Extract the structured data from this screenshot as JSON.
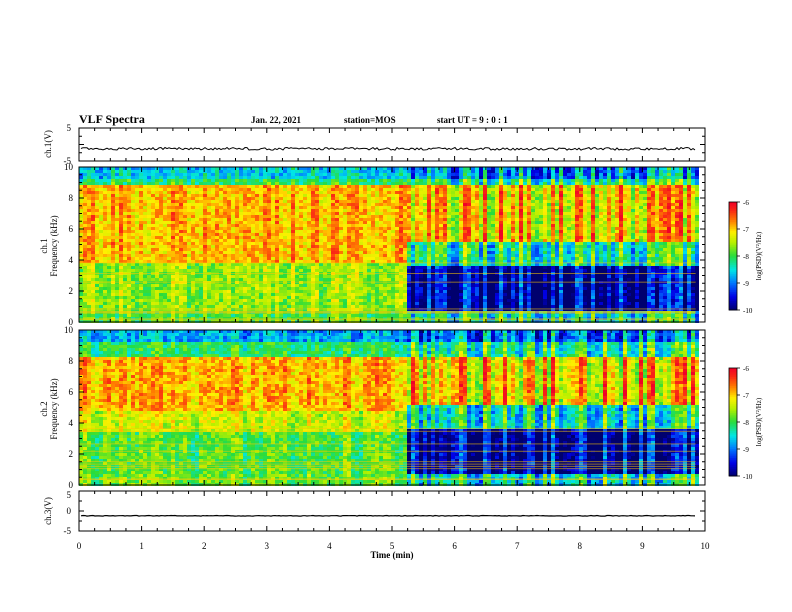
{
  "header": {
    "title": "VLF Spectra",
    "date": "Jan. 22, 2021",
    "station": "station=MOS",
    "start": "start UT =  9 : 0 : 1"
  },
  "chart_data": [
    {
      "type": "line",
      "name": "ch1_waveform",
      "ylabel": "ch.1(V)",
      "ylim": [
        -5,
        5
      ],
      "yticks": [
        5,
        -5
      ],
      "x": [
        0,
        10
      ],
      "values": [
        -1.3,
        -1.3
      ],
      "note_color": "#000000"
    },
    {
      "type": "heatmap",
      "name": "ch1_spectrogram",
      "ylabel_line1": "ch.1",
      "ylabel_line2": "Frequency (kHz)",
      "ylim": [
        0,
        10
      ],
      "yticks": [
        0,
        2,
        4,
        6,
        8,
        10
      ],
      "xlim": [
        0,
        10
      ],
      "data_end_min": 9.85,
      "transition_min": 5.2,
      "bands_before": [
        {
          "f0": 0.0,
          "f1": 0.8,
          "level": -7.9
        },
        {
          "f0": 0.8,
          "f1": 3.8,
          "level": -7.6
        },
        {
          "f0": 3.8,
          "f1": 8.8,
          "level": -6.9
        },
        {
          "f0": 8.8,
          "f1": 9.3,
          "level": -8.1
        },
        {
          "f0": 9.3,
          "f1": 10.0,
          "level": -8.6
        }
      ],
      "bands_after": [
        {
          "f0": 0.0,
          "f1": 0.8,
          "level": -8.3
        },
        {
          "f0": 0.8,
          "f1": 3.6,
          "level": -9.7
        },
        {
          "f0": 3.6,
          "f1": 5.2,
          "level": -8.2
        },
        {
          "f0": 5.2,
          "f1": 8.8,
          "level": -7.0
        },
        {
          "f0": 8.8,
          "f1": 9.3,
          "level": -8.1
        },
        {
          "f0": 9.3,
          "f1": 10.0,
          "level": -8.8
        }
      ],
      "colorbar": {
        "label": "log(PSD)(V²/Hz)",
        "range": [
          -10,
          -6
        ],
        "ticks": [
          -6,
          -7,
          -8,
          -9,
          -10
        ]
      }
    },
    {
      "type": "heatmap",
      "name": "ch2_spectrogram",
      "ylabel_line1": "ch.2",
      "ylabel_line2": "Frequency (kHz)",
      "ylim": [
        0,
        10
      ],
      "yticks": [
        0,
        2,
        4,
        6,
        8,
        10
      ],
      "xlim": [
        0,
        10
      ],
      "data_end_min": 9.85,
      "transition_min": 5.2,
      "bands_before": [
        {
          "f0": 0.0,
          "f1": 0.8,
          "level": -7.8
        },
        {
          "f0": 0.8,
          "f1": 3.4,
          "level": -7.9
        },
        {
          "f0": 3.4,
          "f1": 4.8,
          "level": -7.4
        },
        {
          "f0": 4.8,
          "f1": 8.3,
          "level": -6.9
        },
        {
          "f0": 8.3,
          "f1": 9.2,
          "level": -8.1
        },
        {
          "f0": 9.2,
          "f1": 10.0,
          "level": -8.8
        }
      ],
      "bands_after": [
        {
          "f0": 0.0,
          "f1": 0.8,
          "level": -8.3
        },
        {
          "f0": 0.8,
          "f1": 3.6,
          "level": -9.7
        },
        {
          "f0": 3.6,
          "f1": 5.2,
          "level": -8.3
        },
        {
          "f0": 5.2,
          "f1": 8.2,
          "level": -7.0
        },
        {
          "f0": 8.2,
          "f1": 9.2,
          "level": -8.1
        },
        {
          "f0": 9.2,
          "f1": 10.0,
          "level": -8.9
        }
      ],
      "colorbar": {
        "label": "log(PSD)(V²/Hz)",
        "range": [
          -10,
          -6
        ],
        "ticks": [
          -6,
          -7,
          -8,
          -9,
          -10
        ]
      }
    },
    {
      "type": "line",
      "name": "ch3_waveform",
      "ylabel": "ch.3(V)",
      "ylim": [
        -5,
        5
      ],
      "yticks": [
        5,
        0,
        -5
      ],
      "x": [
        0,
        10
      ],
      "values": [
        -1.2,
        -1.2
      ],
      "xlabel": "Time (min)",
      "xticks": [
        0,
        1,
        2,
        3,
        4,
        5,
        6,
        7,
        8,
        9,
        10
      ]
    }
  ]
}
